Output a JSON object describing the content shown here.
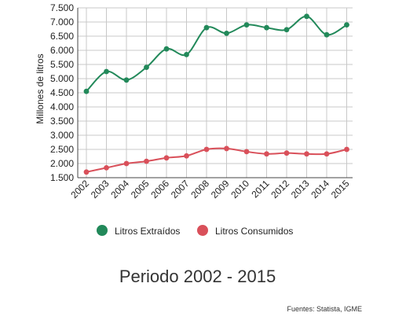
{
  "colors": {
    "extraidos": "#22895a",
    "consumidos": "#d9505a",
    "grid": "#c8c8c8",
    "axis": "#444444"
  },
  "chart_data": {
    "type": "line",
    "title": "",
    "xlabel": "",
    "ylabel": "Millones de litros",
    "categories": [
      "2002",
      "2003",
      "2004",
      "2005",
      "2006",
      "2007",
      "2008",
      "2009",
      "2010",
      "2011",
      "2012",
      "2013",
      "2014",
      "2015"
    ],
    "y_ticks": [
      "1.500",
      "2.000",
      "2.500",
      "3.000",
      "3.500",
      "4.000",
      "4.500",
      "5.000",
      "5.500",
      "6.000",
      "6.500",
      "7.000",
      "7.500"
    ],
    "ylim": [
      1500,
      7500
    ],
    "grid": true,
    "legend_position": "bottom",
    "series": [
      {
        "name": "Litros Extraídos",
        "color": "#22895a",
        "values": [
          4550,
          5250,
          4950,
          5400,
          6050,
          5850,
          6800,
          6600,
          6900,
          6800,
          6730,
          7200,
          6550,
          6900
        ]
      },
      {
        "name": "Litros Consumidos",
        "color": "#d9505a",
        "values": [
          1700,
          1850,
          2000,
          2080,
          2200,
          2270,
          2500,
          2530,
          2420,
          2340,
          2370,
          2340,
          2340,
          2500
        ]
      }
    ]
  },
  "period_label": "Periodo 2002 - 2015",
  "source_note": "Fuentes: Statista, IGME"
}
